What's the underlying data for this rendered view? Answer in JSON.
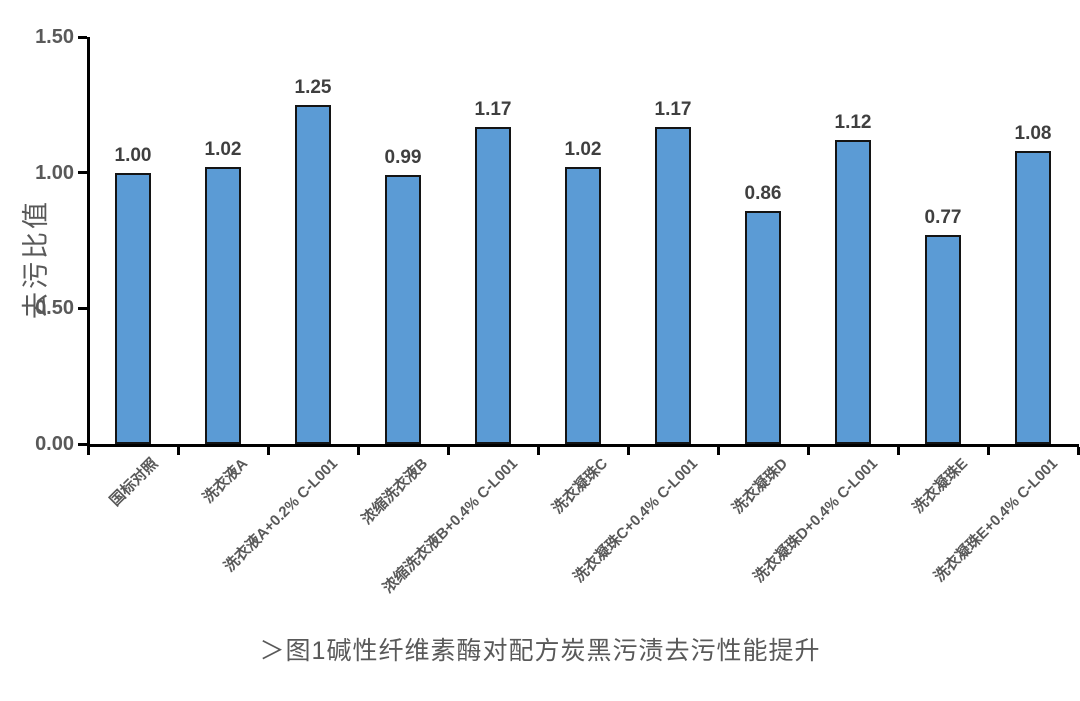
{
  "chart_data": {
    "type": "bar",
    "title": "",
    "xlabel": "",
    "ylabel": "去污比值",
    "categories": [
      "国标对照",
      "洗衣液A",
      "洗衣液A+0.2% C-L001",
      "浓缩洗衣液B",
      "浓缩洗衣液B+0.4% C-L001",
      "洗衣凝珠C",
      "洗衣凝珠C+0.4% C-L001",
      "洗衣凝珠D",
      "洗衣凝珠D+0.4% C-L001",
      "洗衣凝珠E",
      "洗衣凝珠E+0.4% C-L001"
    ],
    "values": [
      1.0,
      1.02,
      1.25,
      0.99,
      1.17,
      1.02,
      1.17,
      0.86,
      1.12,
      0.77,
      1.08
    ],
    "value_labels": [
      "1.00",
      "1.02",
      "1.25",
      "0.99",
      "1.17",
      "1.02",
      "1.17",
      "0.86",
      "1.12",
      "0.77",
      "1.08"
    ],
    "ylim": [
      0,
      1.5
    ],
    "yticks": [
      "0.00",
      "0.50",
      "1.00",
      "1.50"
    ],
    "grid": false,
    "legend": "none",
    "bar_color": "#5B9BD5",
    "bar_border_color": "#141414",
    "axis_color": "#000000",
    "tick_label_color": "#595959",
    "value_label_color": "#3f3f3f"
  },
  "caption": "＞图1碱性纤维素酶对配方炭黑污渍去污性能提升"
}
